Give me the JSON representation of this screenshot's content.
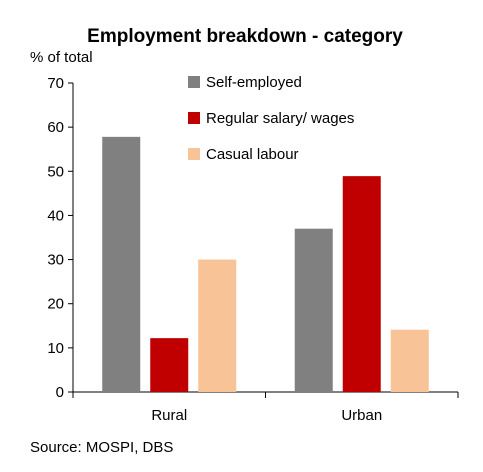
{
  "chart_data": {
    "type": "bar",
    "title": "Employment breakdown - category",
    "ylabel": "% of total",
    "xlabel": "",
    "categories": [
      "Rural",
      "Urban"
    ],
    "series": [
      {
        "name": "Self-employed",
        "color": "#808080",
        "values": [
          57.8,
          37.0
        ]
      },
      {
        "name": "Regular salary/ wages",
        "color": "#c00000",
        "values": [
          12.2,
          48.9
        ]
      },
      {
        "name": "Casual labour",
        "color": "#f8c396",
        "values": [
          30.0,
          14.1
        ]
      }
    ],
    "ylim": [
      0,
      70
    ],
    "yticks": [
      0,
      10,
      20,
      30,
      40,
      50,
      60,
      70
    ],
    "grid": false,
    "legend_position": "top-right",
    "source": "Source: MOSPI, DBS"
  }
}
